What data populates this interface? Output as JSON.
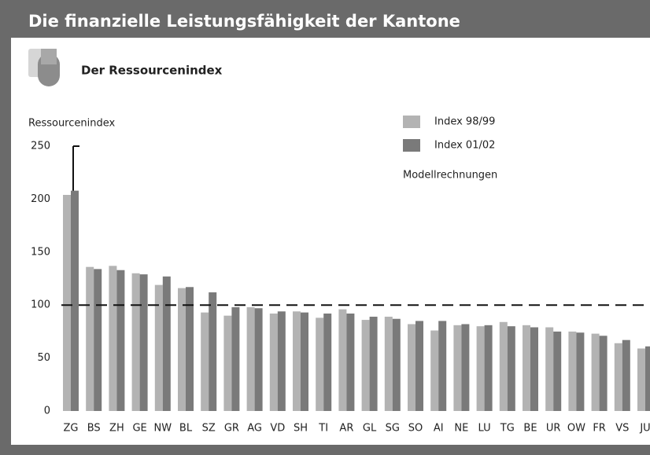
{
  "chart_data": {
    "type": "bar",
    "title": "Die finanzielle Leistungsfähigkeit der Kantone",
    "subtitle": "Der Ressourcenindex",
    "y_label": "Ressourcenindex",
    "annotation": "Modellrechnungen",
    "categories": [
      "ZG",
      "BS",
      "ZH",
      "GE",
      "NW",
      "BL",
      "SZ",
      "GR",
      "AG",
      "VD",
      "SH",
      "TI",
      "AR",
      "GL",
      "SG",
      "SO",
      "AI",
      "NE",
      "LU",
      "TG",
      "BE",
      "UR",
      "OW",
      "FR",
      "VS",
      "JU"
    ],
    "series": [
      {
        "name": "Index 98/99",
        "color": "#b3b3b3",
        "values": [
          204,
          136,
          137,
          130,
          119,
          116,
          93,
          90,
          98,
          92,
          94,
          88,
          96,
          86,
          89,
          82,
          76,
          81,
          80,
          84,
          81,
          79,
          75,
          73,
          64,
          59
        ]
      },
      {
        "name": "Index 01/02",
        "color": "#7a7a7a",
        "values": [
          208,
          134,
          133,
          129,
          127,
          117,
          112,
          98,
          97,
          94,
          93,
          92,
          92,
          89,
          87,
          85,
          85,
          82,
          81,
          80,
          79,
          75,
          74,
          71,
          67,
          61
        ]
      }
    ],
    "ylim": [
      0,
      250
    ],
    "yticks": [
      0,
      50,
      100,
      150,
      200,
      250
    ],
    "reference_line": 100
  }
}
